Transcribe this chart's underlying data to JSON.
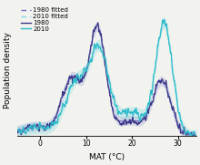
{
  "title": "",
  "xlabel": "MAT (°C)",
  "ylabel": "Population density",
  "xlim": [
    -5,
    34
  ],
  "ylim": [
    0,
    0.068
  ],
  "xticks": [
    0,
    10,
    20,
    30
  ],
  "legend_labels": [
    "1980",
    "2010",
    "1980 fitted",
    "2010 fitted"
  ],
  "color_1980": "#3b3888",
  "color_2010": "#2bbccc",
  "color_1980_fit": "#7070c8",
  "color_2010_fit": "#88dde0",
  "background_color": "#f2f2ee"
}
